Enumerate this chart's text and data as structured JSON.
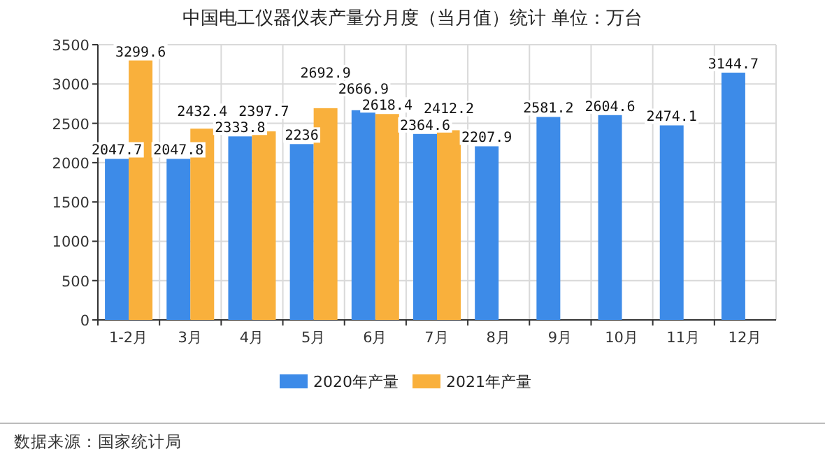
{
  "chart_data": {
    "type": "bar",
    "title": "中国电工仪器仪表产量分月度（当月值）统计 单位：万台",
    "categories": [
      "1-2月",
      "3月",
      "4月",
      "5月",
      "6月",
      "7月",
      "8月",
      "9月",
      "10月",
      "11月",
      "12月"
    ],
    "series": [
      {
        "name": "2020年产量",
        "color": "#3d8be8",
        "values": [
          2047.7,
          2047.8,
          2333.8,
          2236,
          2666.9,
          2364.6,
          2207.9,
          2581.2,
          2604.6,
          2474.1,
          3144.7
        ]
      },
      {
        "name": "2021年产量",
        "color": "#f9b03c",
        "values": [
          3299.6,
          2432.4,
          2397.7,
          2692.9,
          2618.4,
          2412.2,
          null,
          null,
          null,
          null,
          null
        ]
      }
    ],
    "ylim": [
      0,
      3500
    ],
    "yticks": [
      0,
      500,
      1000,
      1500,
      2000,
      2500,
      3000,
      3500
    ],
    "grid": true,
    "legend": "bottom",
    "data_labels": true,
    "annotations": [
      "数据来源：国家统计局"
    ]
  }
}
